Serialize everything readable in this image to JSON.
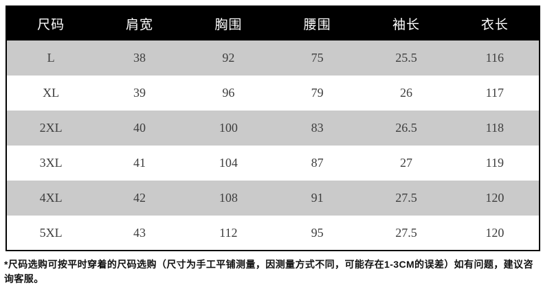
{
  "chart_data": {
    "type": "table",
    "columns": [
      "尺码",
      "肩宽",
      "胸围",
      "腰围",
      "袖长",
      "衣长"
    ],
    "rows": [
      [
        "L",
        "38",
        "92",
        "75",
        "25.5",
        "116"
      ],
      [
        "XL",
        "39",
        "96",
        "79",
        "26",
        "117"
      ],
      [
        "2XL",
        "40",
        "100",
        "83",
        "26.5",
        "118"
      ],
      [
        "3XL",
        "41",
        "104",
        "87",
        "27",
        "119"
      ],
      [
        "4XL",
        "42",
        "108",
        "91",
        "27.5",
        "120"
      ],
      [
        "5XL",
        "43",
        "112",
        "95",
        "27.5",
        "120"
      ]
    ],
    "footnote": "*尺码选购可按平时穿着的尺码选购（尺寸为手工平铺测量，因测量方式不同，可能存在1-3CM的误差）如有问题，建议咨询客服。"
  },
  "colors": {
    "header_bg": "#000000",
    "header_text": "#ffffff",
    "alt_row_bg": "#cacaca",
    "row_bg": "#ffffff",
    "body_text": "#3d3d3d",
    "border": "#000000",
    "note_text": "#111111"
  }
}
